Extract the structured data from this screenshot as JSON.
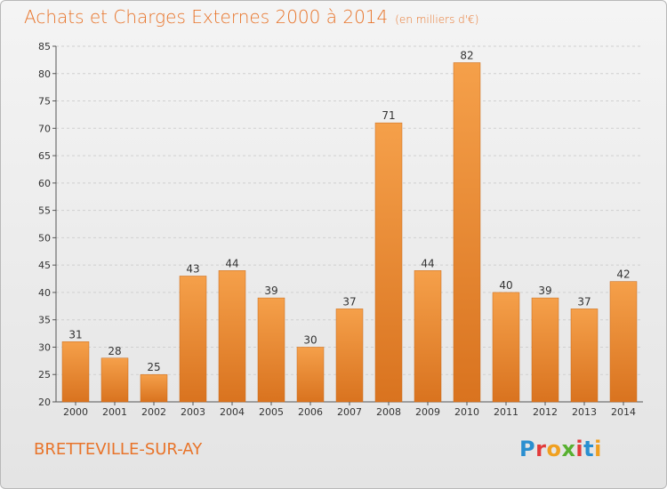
{
  "header": {
    "title": "Achats et Charges Externes 2000 à 2014",
    "subtitle": "(en milliers d'€)"
  },
  "footer": {
    "commune": "BRETTEVILLE-SUR-AY",
    "logo_letters": [
      "P",
      "r",
      "o",
      "x",
      "i",
      "t",
      "i"
    ]
  },
  "chart_data": {
    "type": "bar",
    "title": "Achats et Charges Externes 2000 à 2014",
    "subtitle": "(en milliers d'€)",
    "categories": [
      "2000",
      "2001",
      "2002",
      "2003",
      "2004",
      "2005",
      "2006",
      "2007",
      "2008",
      "2009",
      "2010",
      "2011",
      "2012",
      "2013",
      "2014"
    ],
    "values": [
      31,
      28,
      25,
      43,
      44,
      39,
      30,
      37,
      71,
      44,
      82,
      40,
      39,
      37,
      42
    ],
    "ylim": [
      20,
      85
    ],
    "yticks": [
      20,
      25,
      30,
      35,
      40,
      45,
      50,
      55,
      60,
      65,
      70,
      75,
      80,
      85
    ],
    "grid": true,
    "data_labels": true,
    "colors": {
      "bar_light": "#f5a04a",
      "bar_dark": "#d9731f",
      "grid": "#d0d0d0",
      "title": "#e8742a"
    }
  }
}
